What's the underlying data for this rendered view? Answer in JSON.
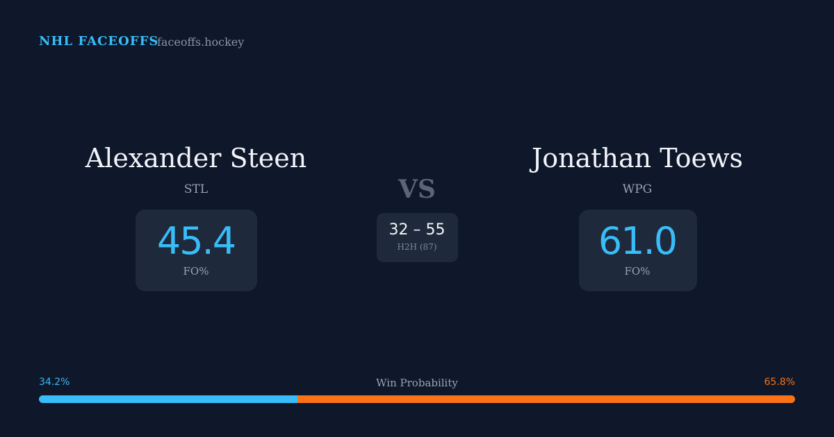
{
  "header": {
    "brand": "NHL FACEOFFS",
    "site": "faceoffs.hockey"
  },
  "players": [
    {
      "name": "Alexander Steen",
      "team": "STL",
      "fo_pct": "45.4",
      "fo_label": "FO%"
    },
    {
      "name": "Jonathan Toews",
      "team": "WPG",
      "fo_pct": "61.0",
      "fo_label": "FO%"
    }
  ],
  "vs": "VS",
  "h2h": {
    "score": "32 – 55",
    "label": "H2H (87)"
  },
  "win_probability": {
    "label": "Win Probability",
    "values": [
      34.2,
      65.8
    ],
    "value_labels": [
      "34.2%",
      "65.8%"
    ],
    "colors": [
      "#38bdf8",
      "#f97316"
    ]
  }
}
